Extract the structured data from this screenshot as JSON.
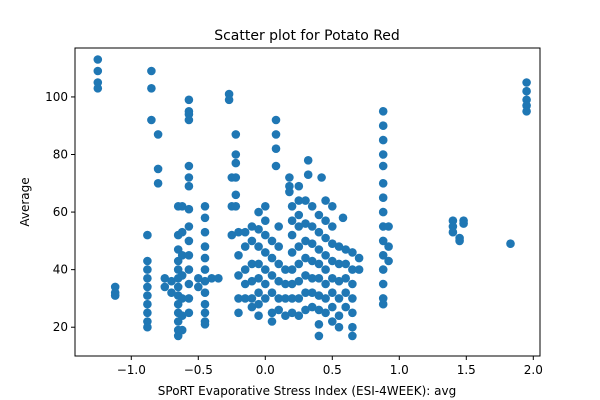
{
  "chart_data": {
    "type": "scatter",
    "title": "Scatter plot for Potato Red",
    "xlabel": "SPoRT Evaporative Stress Index (ESI-4WEEK): avg",
    "ylabel": "Average",
    "xlim": [
      -1.42,
      2.05
    ],
    "ylim": [
      10,
      117
    ],
    "xticks": [
      -1.0,
      -0.5,
      0.0,
      0.5,
      1.0,
      1.5,
      2.0
    ],
    "xtick_labels": [
      "−1.0",
      "−0.5",
      "0.0",
      "0.5",
      "1.0",
      "1.5",
      "2.0"
    ],
    "yticks": [
      20,
      40,
      60,
      80,
      100
    ],
    "ytick_labels": [
      "20",
      "40",
      "60",
      "80",
      "100"
    ],
    "grid": false,
    "marker_color": "#1f77b4",
    "series": [
      {
        "points": [
          [
            -1.25,
            113
          ],
          [
            -1.25,
            109
          ],
          [
            -1.25,
            105
          ],
          [
            -1.25,
            103
          ],
          [
            -1.12,
            34
          ],
          [
            -1.12,
            32
          ],
          [
            -1.12,
            31
          ],
          [
            -0.88,
            52
          ],
          [
            -0.88,
            43
          ],
          [
            -0.88,
            40
          ],
          [
            -0.88,
            37
          ],
          [
            -0.88,
            34
          ],
          [
            -0.88,
            31
          ],
          [
            -0.88,
            28
          ],
          [
            -0.88,
            25
          ],
          [
            -0.88,
            22
          ],
          [
            -0.88,
            20
          ],
          [
            -0.85,
            109
          ],
          [
            -0.85,
            103
          ],
          [
            -0.85,
            92
          ],
          [
            -0.8,
            87
          ],
          [
            -0.8,
            75
          ],
          [
            -0.8,
            70
          ],
          [
            -0.75,
            37
          ],
          [
            -0.75,
            34
          ],
          [
            -0.7,
            36
          ],
          [
            -0.7,
            32
          ],
          [
            -0.65,
            62
          ],
          [
            -0.65,
            52
          ],
          [
            -0.65,
            47
          ],
          [
            -0.65,
            43
          ],
          [
            -0.65,
            40
          ],
          [
            -0.65,
            37
          ],
          [
            -0.65,
            34
          ],
          [
            -0.65,
            31
          ],
          [
            -0.65,
            28
          ],
          [
            -0.65,
            25
          ],
          [
            -0.65,
            22
          ],
          [
            -0.65,
            19
          ],
          [
            -0.65,
            17
          ],
          [
            -0.62,
            62
          ],
          [
            -0.62,
            53
          ],
          [
            -0.62,
            45
          ],
          [
            -0.62,
            38
          ],
          [
            -0.62,
            30
          ],
          [
            -0.62,
            24
          ],
          [
            -0.62,
            19
          ],
          [
            -0.57,
            99
          ],
          [
            -0.57,
            95
          ],
          [
            -0.57,
            94
          ],
          [
            -0.57,
            92
          ],
          [
            -0.57,
            76
          ],
          [
            -0.57,
            72
          ],
          [
            -0.57,
            69
          ],
          [
            -0.57,
            61
          ],
          [
            -0.57,
            55
          ],
          [
            -0.57,
            50
          ],
          [
            -0.57,
            45
          ],
          [
            -0.57,
            40
          ],
          [
            -0.57,
            35
          ],
          [
            -0.57,
            30
          ],
          [
            -0.57,
            25
          ],
          [
            -0.5,
            37
          ],
          [
            -0.5,
            34
          ],
          [
            -0.45,
            62
          ],
          [
            -0.45,
            58
          ],
          [
            -0.45,
            53
          ],
          [
            -0.45,
            48
          ],
          [
            -0.45,
            44
          ],
          [
            -0.45,
            40
          ],
          [
            -0.45,
            36
          ],
          [
            -0.45,
            32
          ],
          [
            -0.45,
            28
          ],
          [
            -0.45,
            25
          ],
          [
            -0.45,
            22
          ],
          [
            -0.45,
            21
          ],
          [
            -0.4,
            37
          ],
          [
            -0.35,
            37
          ],
          [
            -0.27,
            101
          ],
          [
            -0.27,
            99
          ],
          [
            -0.25,
            72
          ],
          [
            -0.25,
            62
          ],
          [
            -0.25,
            52
          ],
          [
            -0.22,
            87
          ],
          [
            -0.22,
            80
          ],
          [
            -0.22,
            77
          ],
          [
            -0.22,
            72
          ],
          [
            -0.22,
            66
          ],
          [
            -0.22,
            62
          ],
          [
            -0.2,
            53
          ],
          [
            -0.2,
            45
          ],
          [
            -0.2,
            38
          ],
          [
            -0.2,
            30
          ],
          [
            -0.2,
            25
          ],
          [
            -0.15,
            53
          ],
          [
            -0.15,
            48
          ],
          [
            -0.15,
            40
          ],
          [
            -0.15,
            35
          ],
          [
            -0.15,
            30
          ],
          [
            -0.1,
            55
          ],
          [
            -0.1,
            50
          ],
          [
            -0.1,
            42
          ],
          [
            -0.1,
            36
          ],
          [
            -0.1,
            30
          ],
          [
            -0.1,
            27
          ],
          [
            -0.05,
            60
          ],
          [
            -0.05,
            54
          ],
          [
            -0.05,
            48
          ],
          [
            -0.05,
            42
          ],
          [
            -0.05,
            37
          ],
          [
            -0.05,
            32
          ],
          [
            -0.05,
            28
          ],
          [
            -0.05,
            24
          ],
          [
            0.0,
            62
          ],
          [
            0.0,
            57
          ],
          [
            0.0,
            52
          ],
          [
            0.0,
            46
          ],
          [
            0.0,
            40
          ],
          [
            0.0,
            35
          ],
          [
            0.0,
            30
          ],
          [
            0.05,
            50
          ],
          [
            0.05,
            44
          ],
          [
            0.05,
            38
          ],
          [
            0.05,
            32
          ],
          [
            0.05,
            25
          ],
          [
            0.05,
            22
          ],
          [
            0.08,
            92
          ],
          [
            0.08,
            87
          ],
          [
            0.08,
            82
          ],
          [
            0.08,
            76
          ],
          [
            0.1,
            55
          ],
          [
            0.1,
            48
          ],
          [
            0.1,
            42
          ],
          [
            0.1,
            36
          ],
          [
            0.1,
            30
          ],
          [
            0.1,
            26
          ],
          [
            0.15,
            40
          ],
          [
            0.15,
            35
          ],
          [
            0.15,
            30
          ],
          [
            0.15,
            24
          ],
          [
            0.18,
            72
          ],
          [
            0.18,
            69
          ],
          [
            0.18,
            67
          ],
          [
            0.2,
            62
          ],
          [
            0.2,
            57
          ],
          [
            0.2,
            52
          ],
          [
            0.2,
            46
          ],
          [
            0.2,
            40
          ],
          [
            0.2,
            35
          ],
          [
            0.2,
            30
          ],
          [
            0.2,
            25
          ],
          [
            0.25,
            69
          ],
          [
            0.25,
            64
          ],
          [
            0.25,
            59
          ],
          [
            0.25,
            55
          ],
          [
            0.25,
            48
          ],
          [
            0.25,
            42
          ],
          [
            0.25,
            36
          ],
          [
            0.25,
            30
          ],
          [
            0.25,
            24
          ],
          [
            0.3,
            64
          ],
          [
            0.3,
            56
          ],
          [
            0.3,
            50
          ],
          [
            0.3,
            44
          ],
          [
            0.3,
            38
          ],
          [
            0.3,
            32
          ],
          [
            0.3,
            26
          ],
          [
            0.32,
            78
          ],
          [
            0.32,
            73
          ],
          [
            0.35,
            62
          ],
          [
            0.35,
            55
          ],
          [
            0.35,
            49
          ],
          [
            0.35,
            43
          ],
          [
            0.35,
            37
          ],
          [
            0.35,
            32
          ],
          [
            0.35,
            27
          ],
          [
            0.4,
            59
          ],
          [
            0.4,
            53
          ],
          [
            0.4,
            47
          ],
          [
            0.4,
            42
          ],
          [
            0.4,
            37
          ],
          [
            0.4,
            31
          ],
          [
            0.4,
            26
          ],
          [
            0.4,
            21
          ],
          [
            0.4,
            17
          ],
          [
            0.42,
            72
          ],
          [
            0.45,
            64
          ],
          [
            0.45,
            57
          ],
          [
            0.45,
            51
          ],
          [
            0.45,
            45
          ],
          [
            0.45,
            40
          ],
          [
            0.45,
            35
          ],
          [
            0.45,
            30
          ],
          [
            0.45,
            25
          ],
          [
            0.5,
            62
          ],
          [
            0.5,
            55
          ],
          [
            0.5,
            49
          ],
          [
            0.5,
            43
          ],
          [
            0.5,
            37
          ],
          [
            0.5,
            32
          ],
          [
            0.5,
            27
          ],
          [
            0.5,
            22
          ],
          [
            0.55,
            48
          ],
          [
            0.55,
            42
          ],
          [
            0.55,
            36
          ],
          [
            0.55,
            30
          ],
          [
            0.55,
            24
          ],
          [
            0.55,
            20
          ],
          [
            0.58,
            58
          ],
          [
            0.6,
            47
          ],
          [
            0.6,
            42
          ],
          [
            0.6,
            37
          ],
          [
            0.6,
            32
          ],
          [
            0.6,
            27
          ],
          [
            0.65,
            46
          ],
          [
            0.65,
            40
          ],
          [
            0.65,
            35
          ],
          [
            0.65,
            30
          ],
          [
            0.65,
            25
          ],
          [
            0.65,
            20
          ],
          [
            0.65,
            17
          ],
          [
            0.7,
            44
          ],
          [
            0.7,
            40
          ],
          [
            0.88,
            95
          ],
          [
            0.88,
            90
          ],
          [
            0.88,
            85
          ],
          [
            0.88,
            80
          ],
          [
            0.88,
            76
          ],
          [
            0.88,
            70
          ],
          [
            0.88,
            65
          ],
          [
            0.88,
            60
          ],
          [
            0.88,
            55
          ],
          [
            0.88,
            50
          ],
          [
            0.88,
            45
          ],
          [
            0.88,
            40
          ],
          [
            0.88,
            35
          ],
          [
            0.88,
            30
          ],
          [
            0.88,
            28
          ],
          [
            0.92,
            55
          ],
          [
            0.92,
            48
          ],
          [
            0.92,
            43
          ],
          [
            1.4,
            57
          ],
          [
            1.4,
            55
          ],
          [
            1.4,
            53
          ],
          [
            1.45,
            51
          ],
          [
            1.45,
            50
          ],
          [
            1.48,
            57
          ],
          [
            1.48,
            56
          ],
          [
            1.83,
            49
          ],
          [
            1.95,
            105
          ],
          [
            1.95,
            102
          ],
          [
            1.95,
            99
          ],
          [
            1.95,
            97
          ],
          [
            1.95,
            95
          ]
        ]
      }
    ]
  }
}
